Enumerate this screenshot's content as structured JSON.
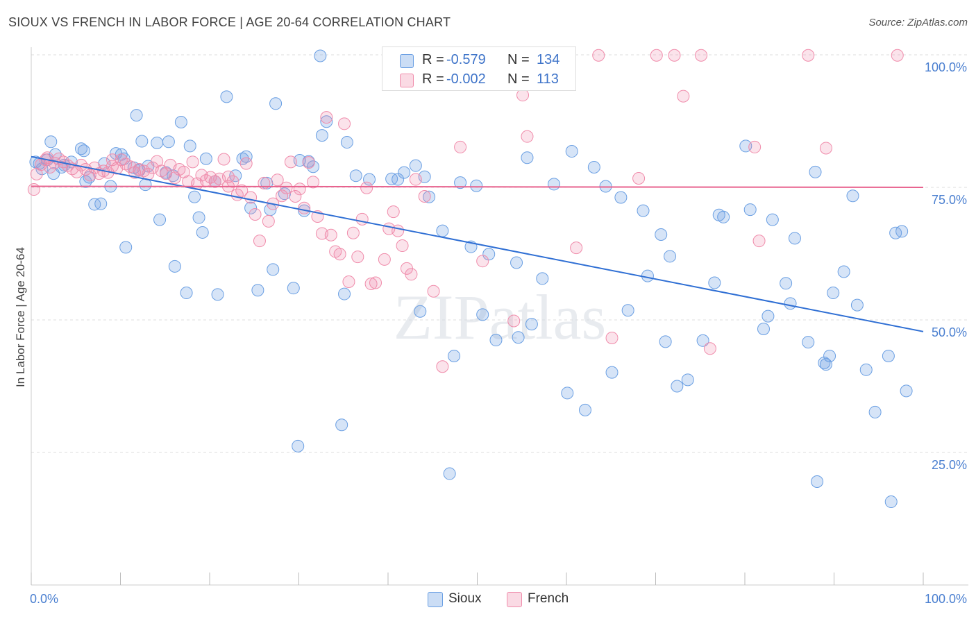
{
  "title": "SIOUX VS FRENCH IN LABOR FORCE | AGE 20-64 CORRELATION CHART",
  "source": "Source: ZipAtlas.com",
  "watermark": "ZIPatlas",
  "legend": {
    "rows": [
      {
        "r_label": "R =",
        "r_value": "-0.579",
        "n_label": "N =",
        "n_value": "134",
        "color": "#6a9fe3"
      },
      {
        "r_label": "R =",
        "r_value": "-0.002",
        "n_label": "N =",
        "n_value": "113",
        "color": "#f08cab"
      }
    ]
  },
  "bottom_legend": [
    {
      "label": "Sioux",
      "color": "#6a9fe3"
    },
    {
      "label": "French",
      "color": "#f08cab"
    }
  ],
  "chart_data": {
    "type": "scatter",
    "title": "SIOUX VS FRENCH IN LABOR FORCE | AGE 20-64 CORRELATION CHART",
    "xlabel": "",
    "ylabel": "In Labor Force | Age 20-64",
    "xlim": [
      0,
      100
    ],
    "ylim": [
      7,
      102
    ],
    "x_tick_labels": [
      "0.0%",
      "100.0%"
    ],
    "y_ticks": [
      25,
      50,
      75,
      100
    ],
    "y_tick_labels": [
      "25.0%",
      "50.0%",
      "75.0%",
      "100.0%"
    ],
    "grid": "horizontal dashed",
    "legend_position": "top-center",
    "series": [
      {
        "name": "Sioux",
        "color": "#6a9fe3",
        "trend": {
          "x": [
            0,
            100
          ],
          "y": [
            80.8,
            47.8
          ]
        },
        "points": [
          [
            0.5,
            79.8
          ],
          [
            1.2,
            78.5
          ],
          [
            1.8,
            80.2
          ],
          [
            2.2,
            83.6
          ],
          [
            2.7,
            81.2
          ],
          [
            3.4,
            78.8
          ],
          [
            3.7,
            79.2
          ],
          [
            4.5,
            79.8
          ],
          [
            5.6,
            82.3
          ],
          [
            5.9,
            81.9
          ],
          [
            6.5,
            76.9
          ],
          [
            7.1,
            71.8
          ],
          [
            7.8,
            71.9
          ],
          [
            8.2,
            79.5
          ],
          [
            8.9,
            75.2
          ],
          [
            9.5,
            81.4
          ],
          [
            10.1,
            81.2
          ],
          [
            10.4,
            80.4
          ],
          [
            10.6,
            63.7
          ],
          [
            11.5,
            78.7
          ],
          [
            11.8,
            88.6
          ],
          [
            12.4,
            83.7
          ],
          [
            12.8,
            75.5
          ],
          [
            13.1,
            79.0
          ],
          [
            14.1,
            83.4
          ],
          [
            14.4,
            68.9
          ],
          [
            15.1,
            77.8
          ],
          [
            15.4,
            83.6
          ],
          [
            15.9,
            77.2
          ],
          [
            16.1,
            60.1
          ],
          [
            16.8,
            87.3
          ],
          [
            17.4,
            55.1
          ],
          [
            17.8,
            82.8
          ],
          [
            18.3,
            73.2
          ],
          [
            18.8,
            69.3
          ],
          [
            19.2,
            66.5
          ],
          [
            19.6,
            80.4
          ],
          [
            20.9,
            54.8
          ],
          [
            21.9,
            92.1
          ],
          [
            22.9,
            77.2
          ],
          [
            23.7,
            80.4
          ],
          [
            24.6,
            71.1
          ],
          [
            25.4,
            55.6
          ],
          [
            26.4,
            75.8
          ],
          [
            26.8,
            70.8
          ],
          [
            27.1,
            59.5
          ],
          [
            27.4,
            90.8
          ],
          [
            28.4,
            73.8
          ],
          [
            29.4,
            56.0
          ],
          [
            29.9,
            26.2
          ],
          [
            30.1,
            80.1
          ],
          [
            30.6,
            70.6
          ],
          [
            31.1,
            79.9
          ],
          [
            32.4,
            99.8
          ],
          [
            32.6,
            84.8
          ],
          [
            33.1,
            87.4
          ],
          [
            34.8,
            30.2
          ],
          [
            35.1,
            54.9
          ],
          [
            35.4,
            83.5
          ],
          [
            36.4,
            77.2
          ],
          [
            37.9,
            76.5
          ],
          [
            40.4,
            76.6
          ],
          [
            41.1,
            76.5
          ],
          [
            41.8,
            77.8
          ],
          [
            43.1,
            79.1
          ],
          [
            43.6,
            51.6
          ],
          [
            44.6,
            73.2
          ],
          [
            46.1,
            66.8
          ],
          [
            46.9,
            21.0
          ],
          [
            47.4,
            43.2
          ],
          [
            48.1,
            75.9
          ],
          [
            49.3,
            63.8
          ],
          [
            49.9,
            75.3
          ],
          [
            50.6,
            51.0
          ],
          [
            51.3,
            62.4
          ],
          [
            52.1,
            46.2
          ],
          [
            54.4,
            60.8
          ],
          [
            54.6,
            46.7
          ],
          [
            55.6,
            80.6
          ],
          [
            56.1,
            49.2
          ],
          [
            57.3,
            57.8
          ],
          [
            58.6,
            75.6
          ],
          [
            60.1,
            36.2
          ],
          [
            60.6,
            81.8
          ],
          [
            62.1,
            33.0
          ],
          [
            63.1,
            78.8
          ],
          [
            64.4,
            75.2
          ],
          [
            65.1,
            40.1
          ],
          [
            66.1,
            73.1
          ],
          [
            66.9,
            51.8
          ],
          [
            68.6,
            70.6
          ],
          [
            69.1,
            58.3
          ],
          [
            70.6,
            66.1
          ],
          [
            71.1,
            45.9
          ],
          [
            71.6,
            62.0
          ],
          [
            72.4,
            37.5
          ],
          [
            73.6,
            38.7
          ],
          [
            75.3,
            46.1
          ],
          [
            76.6,
            57.0
          ],
          [
            77.1,
            69.8
          ],
          [
            77.6,
            69.4
          ],
          [
            80.1,
            82.8
          ],
          [
            80.6,
            70.8
          ],
          [
            82.1,
            48.3
          ],
          [
            82.6,
            50.7
          ],
          [
            83.1,
            68.9
          ],
          [
            84.6,
            56.9
          ],
          [
            85.1,
            53.1
          ],
          [
            85.6,
            65.4
          ],
          [
            87.1,
            45.8
          ],
          [
            87.9,
            77.9
          ],
          [
            88.1,
            19.5
          ],
          [
            88.9,
            41.9
          ],
          [
            89.1,
            41.6
          ],
          [
            89.5,
            43.2
          ],
          [
            89.9,
            55.1
          ],
          [
            91.1,
            59.1
          ],
          [
            92.1,
            73.4
          ],
          [
            92.6,
            52.8
          ],
          [
            93.6,
            40.6
          ],
          [
            94.6,
            32.6
          ],
          [
            96.1,
            43.2
          ],
          [
            96.4,
            15.7
          ],
          [
            96.9,
            66.4
          ],
          [
            97.6,
            66.7
          ],
          [
            98.1,
            36.6
          ],
          [
            0.9,
            79.5
          ],
          [
            2.5,
            77.6
          ],
          [
            6.1,
            76.1
          ],
          [
            12.1,
            78.2
          ],
          [
            20.6,
            76.1
          ],
          [
            24.1,
            80.8
          ],
          [
            31.6,
            78.9
          ],
          [
            44.1,
            77.0
          ]
        ]
      },
      {
        "name": "French",
        "color": "#f08cab",
        "trend": {
          "x": [
            0,
            100
          ],
          "y": [
            75.2,
            75.0
          ]
        },
        "points": [
          [
            0.3,
            74.6
          ],
          [
            0.6,
            77.5
          ],
          [
            1.1,
            79.3
          ],
          [
            1.6,
            80.2
          ],
          [
            2.1,
            78.8
          ],
          [
            2.6,
            79.6
          ],
          [
            3.1,
            80.4
          ],
          [
            3.6,
            79.8
          ],
          [
            4.1,
            79.1
          ],
          [
            4.6,
            78.5
          ],
          [
            5.1,
            77.9
          ],
          [
            5.6,
            79.2
          ],
          [
            6.1,
            78.4
          ],
          [
            6.6,
            77.3
          ],
          [
            7.1,
            78.7
          ],
          [
            7.6,
            77.6
          ],
          [
            8.1,
            78.1
          ],
          [
            8.6,
            77.8
          ],
          [
            9.1,
            79.0
          ],
          [
            9.6,
            78.6
          ],
          [
            10.1,
            80.2
          ],
          [
            10.6,
            79.4
          ],
          [
            11.1,
            78.9
          ],
          [
            11.6,
            77.8
          ],
          [
            12.1,
            78.4
          ],
          [
            12.6,
            78.1
          ],
          [
            13.1,
            77.5
          ],
          [
            13.6,
            78.7
          ],
          [
            14.1,
            79.9
          ],
          [
            14.6,
            78.1
          ],
          [
            15.1,
            77.6
          ],
          [
            15.6,
            79.2
          ],
          [
            16.1,
            76.8
          ],
          [
            16.6,
            78.4
          ],
          [
            17.1,
            77.9
          ],
          [
            17.6,
            76.1
          ],
          [
            18.1,
            79.8
          ],
          [
            18.6,
            75.7
          ],
          [
            19.1,
            77.3
          ],
          [
            19.6,
            76.3
          ],
          [
            20.1,
            76.9
          ],
          [
            20.6,
            76.1
          ],
          [
            21.1,
            76.6
          ],
          [
            21.6,
            80.3
          ],
          [
            22.1,
            75.2
          ],
          [
            22.6,
            76.1
          ],
          [
            23.1,
            73.6
          ],
          [
            23.6,
            74.4
          ],
          [
            24.1,
            79.5
          ],
          [
            24.6,
            73.1
          ],
          [
            25.1,
            69.9
          ],
          [
            25.6,
            64.9
          ],
          [
            26.1,
            75.8
          ],
          [
            26.6,
            68.6
          ],
          [
            27.1,
            71.9
          ],
          [
            27.6,
            76.4
          ],
          [
            28.1,
            73.4
          ],
          [
            28.6,
            74.9
          ],
          [
            29.1,
            79.8
          ],
          [
            29.6,
            73.3
          ],
          [
            30.1,
            74.7
          ],
          [
            30.6,
            71.1
          ],
          [
            31.1,
            79.7
          ],
          [
            31.6,
            76.0
          ],
          [
            32.1,
            69.5
          ],
          [
            32.6,
            66.3
          ],
          [
            33.1,
            88.2
          ],
          [
            33.6,
            66.0
          ],
          [
            34.1,
            62.9
          ],
          [
            34.6,
            62.4
          ],
          [
            35.1,
            87.0
          ],
          [
            35.6,
            57.2
          ],
          [
            36.1,
            66.4
          ],
          [
            36.6,
            61.9
          ],
          [
            37.1,
            69.0
          ],
          [
            37.6,
            74.9
          ],
          [
            38.1,
            56.8
          ],
          [
            38.6,
            57.0
          ],
          [
            39.6,
            61.4
          ],
          [
            40.1,
            67.2
          ],
          [
            40.6,
            70.4
          ],
          [
            41.1,
            66.8
          ],
          [
            41.6,
            64.0
          ],
          [
            42.1,
            59.7
          ],
          [
            42.6,
            58.6
          ],
          [
            43.1,
            76.5
          ],
          [
            44.1,
            73.3
          ],
          [
            45.1,
            55.4
          ],
          [
            46.1,
            41.2
          ],
          [
            47.6,
            99.9
          ],
          [
            48.1,
            82.6
          ],
          [
            50.6,
            61.1
          ],
          [
            53.1,
            99.9
          ],
          [
            54.1,
            49.8
          ],
          [
            55.1,
            92.4
          ],
          [
            55.6,
            84.6
          ],
          [
            61.1,
            63.6
          ],
          [
            63.6,
            99.9
          ],
          [
            65.1,
            46.6
          ],
          [
            68.1,
            76.7
          ],
          [
            70.1,
            99.9
          ],
          [
            72.1,
            99.9
          ],
          [
            73.1,
            92.2
          ],
          [
            75.1,
            99.9
          ],
          [
            76.1,
            44.6
          ],
          [
            81.1,
            82.6
          ],
          [
            81.6,
            64.9
          ],
          [
            87.1,
            99.9
          ],
          [
            89.1,
            82.4
          ],
          [
            97.1,
            99.9
          ],
          [
            1.8,
            80.6
          ],
          [
            9.1,
            80.2
          ],
          [
            22.1,
            77.0
          ]
        ]
      }
    ]
  }
}
